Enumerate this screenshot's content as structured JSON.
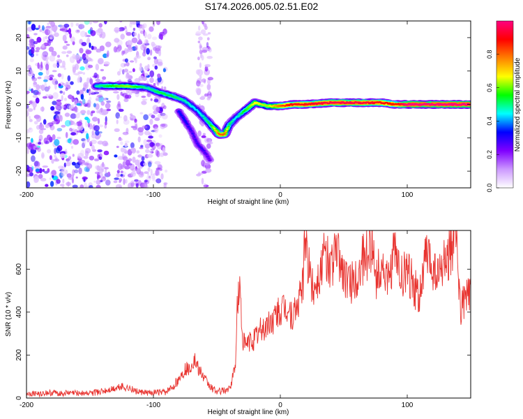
{
  "title": "S174.2026.005.02.51.E02",
  "colors": {
    "snr_line": "#e8322e",
    "axis": "#000000",
    "background": "#ffffff"
  },
  "chart_data": [
    {
      "type": "heatmap",
      "name": "spectrogram",
      "xlabel": "Height of straight line (km)",
      "ylabel": "Frequency (Hz)",
      "xlim": [
        -200,
        150
      ],
      "ylim": [
        -25,
        25
      ],
      "xticks": [
        -200,
        -100,
        0,
        100
      ],
      "yticks": [
        -20,
        -10,
        0,
        10,
        20
      ],
      "colorbar": {
        "label": "Normalized spectral amplitude",
        "range": [
          0.0,
          1.0
        ],
        "ticks": [
          "0.0",
          "0.2",
          "0.4",
          "0.6",
          "0.8"
        ],
        "tick_values": [
          0.0,
          0.2,
          0.4,
          0.6,
          0.8
        ],
        "colormap": [
          "#ffffff",
          "#cc99ff",
          "#8000ff",
          "#0000ff",
          "#00ffff",
          "#00ff00",
          "#ffff00",
          "#ff8000",
          "#ff0000",
          "#ff0080"
        ]
      },
      "ridge": {
        "x": [
          -145,
          -130,
          -120,
          -105,
          -95,
          -85,
          -75,
          -65,
          -55,
          -48,
          -44,
          -40,
          -35,
          -30,
          -20,
          -10,
          0,
          10,
          20,
          40,
          60,
          80,
          90,
          100,
          120,
          150
        ],
        "y": [
          5.5,
          5.5,
          5.5,
          5.0,
          3.5,
          2.5,
          1.0,
          -2.0,
          -6.0,
          -9.0,
          -9.0,
          -6.0,
          -4.0,
          -2.5,
          0.5,
          -0.5,
          -0.5,
          0.0,
          0.0,
          0.5,
          0.5,
          0.5,
          0.0,
          0.0,
          0.0,
          0.0
        ],
        "amplitude": [
          0.4,
          0.5,
          0.55,
          0.4,
          0.45,
          0.45,
          0.4,
          0.35,
          0.45,
          0.75,
          0.75,
          0.45,
          0.35,
          0.45,
          0.6,
          0.55,
          0.75,
          0.85,
          0.85,
          0.9,
          0.9,
          0.85,
          0.8,
          0.95,
          0.95,
          0.95
        ]
      },
      "secondary_branch": {
        "x": [
          -80,
          -75,
          -70,
          -65,
          -60,
          -55
        ],
        "y": [
          -2.0,
          -5.0,
          -8.0,
          -12.0,
          -14.0,
          -17.0
        ],
        "amplitude": [
          0.25,
          0.25,
          0.2,
          0.2,
          0.2,
          0.15
        ]
      },
      "noise_regions": [
        {
          "x_from": -200,
          "x_to": -135,
          "amplitude": 0.2
        },
        {
          "x_from": -130,
          "x_to": -90,
          "amplitude": 0.15
        },
        {
          "x_from": -65,
          "x_to": -55,
          "amplitude": 0.1
        }
      ]
    },
    {
      "type": "line",
      "name": "snr",
      "xlabel": "Height of straight line (km)",
      "ylabel": "SNR (10 * v/v)",
      "xlim": [
        -200,
        150
      ],
      "ylim": [
        0,
        780
      ],
      "xticks": [
        -200,
        -100,
        0,
        100
      ],
      "yticks": [
        0,
        200,
        400,
        600
      ],
      "series": [
        {
          "name": "SNR",
          "x": [
            -200,
            -190,
            -180,
            -170,
            -160,
            -150,
            -140,
            -130,
            -125,
            -120,
            -115,
            -110,
            -100,
            -90,
            -85,
            -80,
            -75,
            -70,
            -68,
            -65,
            -60,
            -55,
            -50,
            -45,
            -40,
            -38,
            -35,
            -34,
            -32,
            -30,
            -28,
            -25,
            -20,
            -15,
            -10,
            -5,
            0,
            5,
            10,
            15,
            18,
            20,
            22,
            25,
            30,
            35,
            40,
            45,
            50,
            55,
            60,
            65,
            70,
            73,
            75,
            80,
            85,
            90,
            95,
            100,
            105,
            110,
            115,
            120,
            125,
            130,
            135,
            138,
            140,
            142,
            145,
            150
          ],
          "y": [
            20,
            20,
            25,
            22,
            25,
            22,
            30,
            45,
            55,
            48,
            35,
            25,
            25,
            28,
            50,
            90,
            130,
            150,
            180,
            140,
            90,
            50,
            30,
            35,
            40,
            80,
            180,
            440,
            520,
            300,
            240,
            260,
            280,
            320,
            340,
            370,
            400,
            420,
            370,
            450,
            560,
            785,
            620,
            520,
            560,
            660,
            610,
            690,
            580,
            520,
            560,
            640,
            680,
            750,
            560,
            620,
            520,
            680,
            560,
            600,
            520,
            480,
            660,
            600,
            560,
            640,
            700,
            760,
            620,
            420,
            460,
            500
          ]
        }
      ]
    }
  ]
}
